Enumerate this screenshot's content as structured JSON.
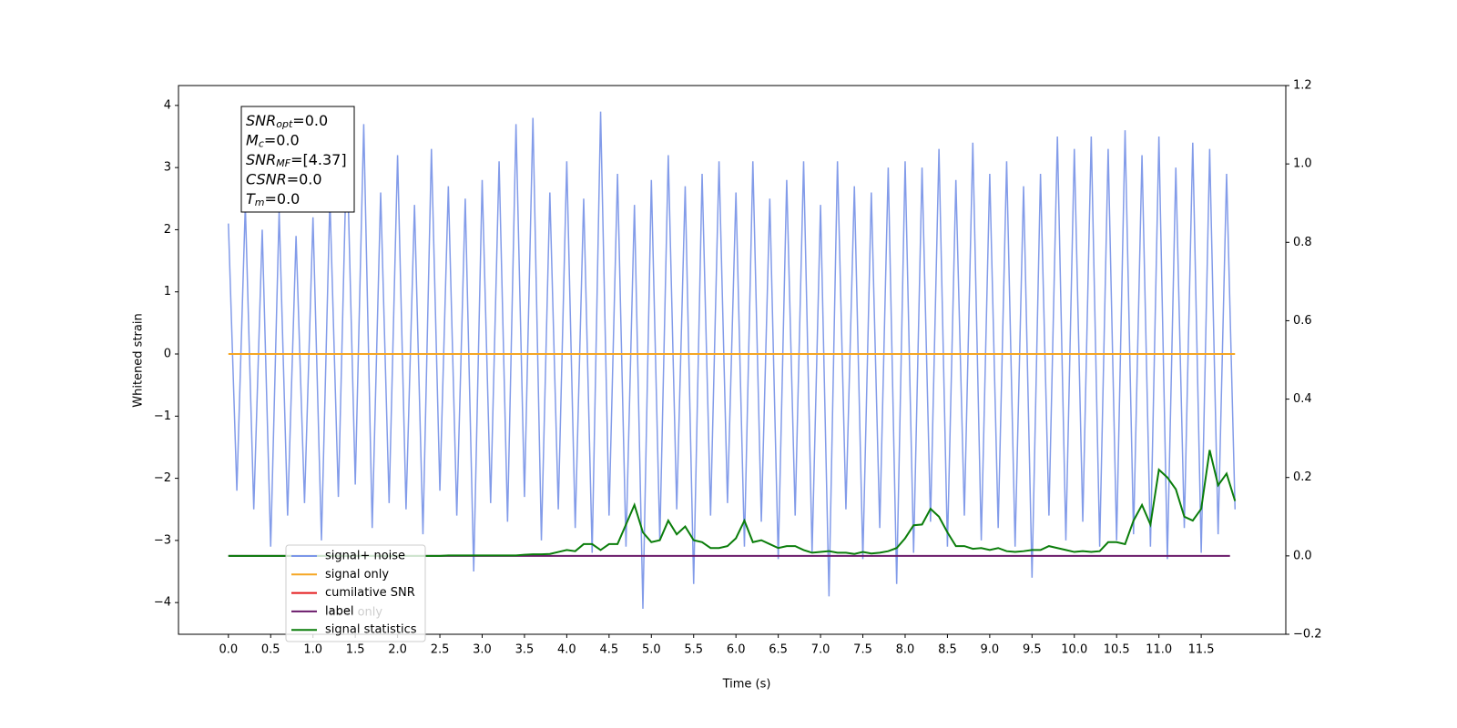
{
  "chart_data": {
    "type": "line",
    "xlabel": "Time (s)",
    "ylabel": "Whitened strain",
    "xlim": [
      -0.59,
      12.5
    ],
    "ylim": [
      -4.51,
      4.32
    ],
    "y2lim": [
      -0.2,
      1.2
    ],
    "xticks": [
      {
        "value": 0,
        "label": "0.0"
      },
      {
        "value": 0.5,
        "label": "0.5"
      },
      {
        "value": 1,
        "label": "1.0"
      },
      {
        "value": 1.5,
        "label": "1.5"
      },
      {
        "value": 2,
        "label": "2.0"
      },
      {
        "value": 2.5,
        "label": "2.5"
      },
      {
        "value": 3,
        "label": "3.0"
      },
      {
        "value": 3.5,
        "label": "3.5"
      },
      {
        "value": 4,
        "label": "4.0"
      },
      {
        "value": 4.5,
        "label": "4.5"
      },
      {
        "value": 5,
        "label": "5.0"
      },
      {
        "value": 5.5,
        "label": "5.5"
      },
      {
        "value": 6,
        "label": "6.0"
      },
      {
        "value": 6.5,
        "label": "6.5"
      },
      {
        "value": 7,
        "label": "7.0"
      },
      {
        "value": 7.5,
        "label": "7.5"
      },
      {
        "value": 8,
        "label": "8.0"
      },
      {
        "value": 8.5,
        "label": "8.5"
      },
      {
        "value": 9,
        "label": "9.0"
      },
      {
        "value": 9.5,
        "label": "9.5"
      },
      {
        "value": 10,
        "label": "10.0"
      },
      {
        "value": 10.5,
        "label": "10.5"
      },
      {
        "value": 11,
        "label": "11.0"
      },
      {
        "value": 11.5,
        "label": "11.5"
      }
    ],
    "yticks": [
      {
        "value": -4,
        "label": "−4"
      },
      {
        "value": -3,
        "label": "−3"
      },
      {
        "value": -2,
        "label": "−2"
      },
      {
        "value": -1,
        "label": "−1"
      },
      0,
      1,
      2,
      3,
      4
    ],
    "y2ticks": [
      {
        "value": -0.2,
        "label": "−0.2"
      },
      {
        "value": 0,
        "label": "0.0"
      },
      0.2,
      0.4,
      0.6,
      0.8,
      {
        "value": 1,
        "label": "1.0"
      },
      1.2
    ],
    "annotations": [
      {
        "base": "SNR",
        "sub": "opt",
        "text": "=0.0"
      },
      {
        "base": "M",
        "sub": "c",
        "text": "=0.0"
      },
      {
        "base": "SNR",
        "sub": "MF",
        "text": "=[4.37]"
      },
      {
        "base": "CSNR",
        "text": "=0.0"
      },
      {
        "base": "T",
        "sub": "m",
        "text": "=0.0"
      }
    ],
    "legend_overlay": "label only",
    "series": [
      {
        "name": "signal+ noise",
        "color": "#7b96e8",
        "x": [
          0,
          0.1,
          0.2,
          0.3,
          0.4,
          0.5,
          0.6,
          0.7,
          0.8,
          0.9,
          1,
          1.1,
          1.2,
          1.3,
          1.4,
          1.5,
          1.6,
          1.7,
          1.8,
          1.9,
          2,
          2.1,
          2.2,
          2.3,
          2.4,
          2.5,
          2.6,
          2.7,
          2.8,
          2.9,
          3,
          3.1,
          3.2,
          3.3,
          3.4,
          3.5,
          3.6,
          3.7,
          3.8,
          3.9,
          4,
          4.1,
          4.2,
          4.3,
          4.4,
          4.5,
          4.6,
          4.7,
          4.8,
          4.9,
          5,
          5.1,
          5.2,
          5.3,
          5.4,
          5.5,
          5.6,
          5.7,
          5.8,
          5.9,
          6,
          6.1,
          6.2,
          6.3,
          6.4,
          6.5,
          6.6,
          6.7,
          6.8,
          6.9,
          7,
          7.1,
          7.2,
          7.3,
          7.4,
          7.5,
          7.6,
          7.7,
          7.8,
          7.9,
          8,
          8.1,
          8.2,
          8.3,
          8.4,
          8.5,
          8.6,
          8.7,
          8.8,
          8.9,
          9,
          9.1,
          9.2,
          9.3,
          9.4,
          9.5,
          9.6,
          9.7,
          9.8,
          9.9,
          10,
          10.1,
          10.2,
          10.3,
          10.4,
          10.5,
          10.6,
          10.7,
          10.8,
          10.9,
          11,
          11.1,
          11.2,
          11.3,
          11.4,
          11.5,
          11.6,
          11.7,
          11.8,
          11.9
        ],
        "values": [
          2.1,
          -2.2,
          2.4,
          -2.5,
          2.0,
          -3.1,
          2.3,
          -2.6,
          1.9,
          -2.4,
          2.2,
          -3.0,
          2.5,
          -2.3,
          3.4,
          -2.1,
          3.7,
          -2.8,
          2.6,
          -2.4,
          3.2,
          -2.5,
          2.4,
          -2.9,
          3.3,
          -2.2,
          2.7,
          -2.6,
          2.5,
          -3.5,
          2.8,
          -2.4,
          3.1,
          -2.7,
          3.7,
          -2.3,
          3.8,
          -3.0,
          2.6,
          -2.5,
          3.1,
          -2.8,
          2.5,
          -3.2,
          3.9,
          -2.6,
          2.9,
          -3.1,
          2.4,
          -4.1,
          2.8,
          -3.0,
          3.2,
          -2.5,
          2.7,
          -3.7,
          2.9,
          -2.6,
          3.1,
          -2.4,
          2.6,
          -3.1,
          3.1,
          -2.7,
          2.5,
          -3.3,
          2.8,
          -2.6,
          3.1,
          -3.2,
          2.4,
          -3.9,
          3.1,
          -2.5,
          2.7,
          -3.3,
          2.6,
          -2.8,
          3.0,
          -3.7,
          3.1,
          -3.2,
          3.0,
          -2.7,
          3.3,
          -3.1,
          2.8,
          -2.6,
          3.4,
          -3.0,
          2.9,
          -2.8,
          3.1,
          -3.1,
          2.7,
          -3.6,
          2.9,
          -2.6,
          3.5,
          -3.0,
          3.3,
          -2.7,
          3.5,
          -3.1,
          3.3,
          -3.0,
          3.6,
          -2.9,
          3.2,
          -3.1,
          3.5,
          -3.3,
          3.0,
          -2.8,
          3.4,
          -3.2,
          3.3,
          -2.9,
          2.9,
          -2.5
        ]
      },
      {
        "name": "signal only",
        "color": "#f5a623",
        "x": [
          0,
          11.9
        ],
        "values": [
          0,
          0
        ]
      },
      {
        "name": "cumilative SNR",
        "color": "#e41a1c"
      },
      {
        "name": "label",
        "color": "#6a1a6a",
        "axis": "y2",
        "x": [
          0,
          11.84
        ],
        "values": [
          0,
          0
        ]
      },
      {
        "name": "signal statistics",
        "color": "#0a7d0a",
        "axis": "y2",
        "x": [
          0,
          0.1,
          0.2,
          0.3,
          0.4,
          0.5,
          0.6,
          0.7,
          0.8,
          0.9,
          1,
          1.1,
          1.2,
          1.3,
          1.4,
          1.5,
          1.6,
          1.7,
          1.8,
          1.9,
          2,
          2.1,
          2.2,
          2.3,
          2.4,
          2.5,
          2.6,
          2.7,
          2.8,
          2.9,
          3,
          3.1,
          3.2,
          3.3,
          3.4,
          3.5,
          3.6,
          3.7,
          3.8,
          3.9,
          4,
          4.1,
          4.2,
          4.3,
          4.4,
          4.5,
          4.6,
          4.7,
          4.8,
          4.9,
          5,
          5.1,
          5.2,
          5.3,
          5.4,
          5.5,
          5.6,
          5.7,
          5.8,
          5.9,
          6,
          6.1,
          6.2,
          6.3,
          6.4,
          6.5,
          6.6,
          6.7,
          6.8,
          6.9,
          7,
          7.1,
          7.2,
          7.3,
          7.4,
          7.5,
          7.6,
          7.7,
          7.8,
          7.9,
          8,
          8.1,
          8.2,
          8.3,
          8.4,
          8.5,
          8.6,
          8.7,
          8.8,
          8.9,
          9,
          9.1,
          9.2,
          9.3,
          9.4,
          9.5,
          9.6,
          9.7,
          9.8,
          9.9,
          10,
          10.1,
          10.2,
          10.3,
          10.4,
          10.5,
          10.6,
          10.7,
          10.8,
          10.9,
          11,
          11.1,
          11.2,
          11.3,
          11.4,
          11.5,
          11.6,
          11.7,
          11.8,
          11.9
        ],
        "values": [
          0,
          0,
          0,
          0,
          0,
          0,
          0,
          0,
          0,
          0,
          0,
          0,
          0,
          0,
          0,
          0,
          0,
          0,
          0,
          0,
          0,
          0,
          0,
          0,
          0,
          0,
          0.001,
          0.001,
          0.001,
          0.001,
          0.001,
          0.001,
          0.001,
          0.001,
          0.001,
          0.003,
          0.004,
          0.004,
          0.005,
          0.01,
          0.015,
          0.012,
          0.03,
          0.03,
          0.015,
          0.03,
          0.03,
          0.08,
          0.13,
          0.06,
          0.035,
          0.04,
          0.09,
          0.055,
          0.075,
          0.04,
          0.035,
          0.02,
          0.02,
          0.025,
          0.045,
          0.09,
          0.035,
          0.04,
          0.03,
          0.02,
          0.025,
          0.025,
          0.015,
          0.008,
          0.01,
          0.012,
          0.008,
          0.008,
          0.005,
          0.01,
          0.006,
          0.008,
          0.012,
          0.02,
          0.045,
          0.078,
          0.08,
          0.12,
          0.1,
          0.06,
          0.025,
          0.025,
          0.018,
          0.02,
          0.015,
          0.02,
          0.012,
          0.01,
          0.012,
          0.015,
          0.015,
          0.025,
          0.02,
          0.015,
          0.01,
          0.012,
          0.01,
          0.012,
          0.035,
          0.035,
          0.03,
          0.09,
          0.13,
          0.08,
          0.22,
          0.2,
          0.17,
          0.1,
          0.09,
          0.12,
          0.27,
          0.18,
          0.21,
          0.14
        ]
      }
    ]
  }
}
